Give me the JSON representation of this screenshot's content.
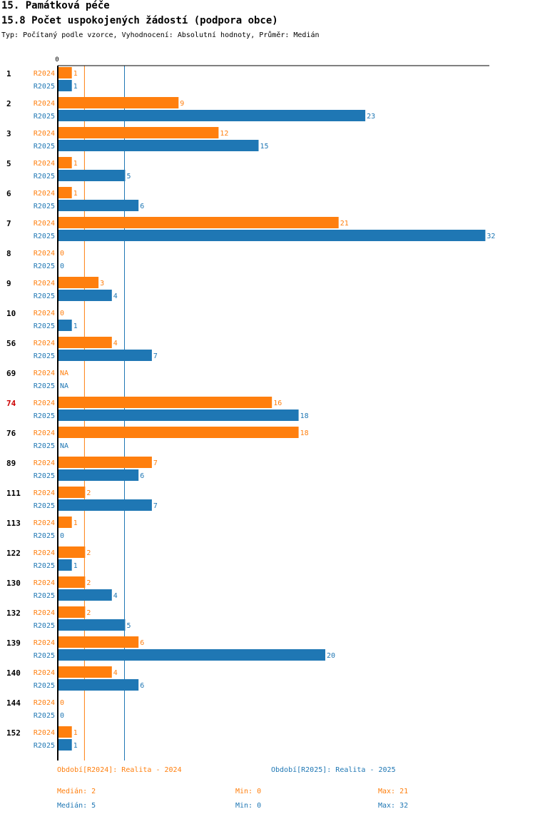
{
  "header": {
    "title": "15. Památková péče",
    "subtitle": "15.8 Počet uspokojených žádostí (podpora obce)",
    "meta": "Typ: Počítaný podle vzorce, Vyhodnocení: Absolutní hodnoty, Průměr: Medián"
  },
  "chart_data": {
    "type": "bar",
    "orientation": "horizontal",
    "axis_zero_label": "0",
    "xlim": [
      0,
      32
    ],
    "highlight_category": "74",
    "highlight_color": "#cc0000",
    "categories": [
      "1",
      "2",
      "3",
      "5",
      "6",
      "7",
      "8",
      "9",
      "10",
      "56",
      "69",
      "74",
      "76",
      "89",
      "111",
      "113",
      "122",
      "130",
      "132",
      "139",
      "140",
      "144",
      "152"
    ],
    "series": [
      {
        "name": "R2024",
        "color": "#ff7f0e",
        "values": [
          1,
          9,
          12,
          1,
          1,
          21,
          0,
          3,
          0,
          4,
          null,
          16,
          18,
          7,
          2,
          1,
          2,
          2,
          2,
          6,
          4,
          0,
          1
        ],
        "median": 2
      },
      {
        "name": "R2025",
        "color": "#1f77b4",
        "values": [
          1,
          23,
          15,
          5,
          6,
          32,
          0,
          4,
          1,
          7,
          null,
          18,
          null,
          6,
          7,
          0,
          1,
          4,
          5,
          20,
          6,
          0,
          1
        ],
        "median": 5
      }
    ],
    "na_label": "NA"
  },
  "legend": {
    "r2024": "Období[R2024]: Realita - 2024",
    "r2025": "Období[R2025]: Realita - 2025"
  },
  "stats": {
    "r2024": {
      "median": "Medián: 2",
      "min": "Min: 0",
      "max": "Max: 21"
    },
    "r2025": {
      "median": "Medián: 5",
      "min": "Min: 0",
      "max": "Max: 32"
    }
  }
}
